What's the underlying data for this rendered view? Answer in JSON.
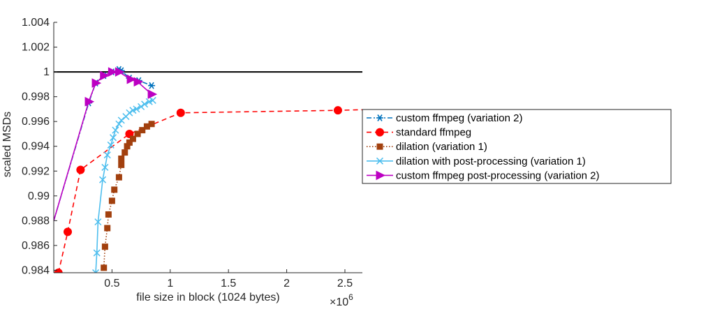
{
  "chart_data": {
    "type": "line",
    "title": "",
    "xlabel": "file size in block (1024 bytes)",
    "ylabel": "scaled MSDs",
    "x_multiplier_label": "×10",
    "x_multiplier_exponent": "6",
    "xlim": [
      0,
      2650000
    ],
    "ylim": [
      0.9838,
      1.004
    ],
    "x_ticks": [
      500000,
      1000000,
      1500000,
      2000000,
      2500000
    ],
    "x_tick_labels": [
      "0.5",
      "1",
      "1.5",
      "2",
      "2.5"
    ],
    "y_ticks": [
      0.984,
      0.986,
      0.988,
      0.99,
      0.992,
      0.994,
      0.996,
      0.998,
      1,
      1.002,
      1.004
    ],
    "y_tick_labels": [
      "0.984",
      "0.986",
      "0.988",
      "0.99",
      "0.992",
      "0.994",
      "0.996",
      "0.998",
      "1",
      "1.002",
      "1.004"
    ],
    "grid": false,
    "reference_line": {
      "y": 1.0,
      "color": "#000000"
    },
    "legend_position": "right",
    "series": [
      {
        "name": "custom ffmpeg (variation 2)",
        "color": "#0072BD",
        "marker": "asterisk",
        "line_style": "dash-dot",
        "x": [
          0,
          300000,
          360000,
          430000,
          500000,
          560000,
          580000,
          650000,
          730000,
          840000
        ],
        "y": [
          0.988,
          0.9975,
          0.9991,
          0.9997,
          1.0,
          1.0002,
          1.0001,
          0.9995,
          0.9993,
          0.9989
        ]
      },
      {
        "name": "standard ffmpeg",
        "color": "#FF0000",
        "marker": "circle",
        "line_style": "dashed",
        "x": [
          40000,
          120000,
          230000,
          650000,
          1090000,
          2440000,
          2650000
        ],
        "y": [
          0.9838,
          0.9871,
          0.9921,
          0.995,
          0.9967,
          0.9969,
          0.99695
        ]
      },
      {
        "name": "dilation (variation 1)",
        "color": "#A2400E",
        "marker": "square",
        "line_style": "dotted",
        "x": [
          430000,
          440000,
          460000,
          470000,
          500000,
          520000,
          560000,
          580000,
          580000,
          610000,
          630000,
          650000,
          680000,
          720000,
          760000,
          800000,
          840000
        ],
        "y": [
          0.9842,
          0.9859,
          0.9874,
          0.9885,
          0.9896,
          0.9905,
          0.9915,
          0.9925,
          0.993,
          0.9935,
          0.994,
          0.9943,
          0.9946,
          0.995,
          0.9953,
          0.9956,
          0.9958
        ]
      },
      {
        "name": "dilation with post-processing (variation 1)",
        "color": "#4DBEEE",
        "marker": "x",
        "line_style": "solid",
        "x": [
          360000,
          370000,
          380000,
          420000,
          440000,
          460000,
          490000,
          510000,
          530000,
          560000,
          580000,
          620000,
          650000,
          680000,
          710000,
          750000,
          780000,
          820000,
          850000
        ],
        "y": [
          0.9838,
          0.9854,
          0.9879,
          0.9913,
          0.9923,
          0.9933,
          0.9941,
          0.9947,
          0.9953,
          0.9958,
          0.9961,
          0.9964,
          0.9967,
          0.9969,
          0.997,
          0.9972,
          0.9974,
          0.9976,
          0.9977
        ]
      },
      {
        "name": "custom ffmpeg post-processing (variation 2)",
        "color": "#BC00C2",
        "marker": "triangle-right",
        "line_style": "solid",
        "x": [
          0,
          300000,
          360000,
          430000,
          500000,
          560000,
          660000,
          720000,
          840000
        ],
        "y": [
          0.988,
          0.9976,
          0.9991,
          0.9997,
          1.0,
          1.0,
          0.9994,
          0.9992,
          0.9982
        ]
      }
    ]
  }
}
